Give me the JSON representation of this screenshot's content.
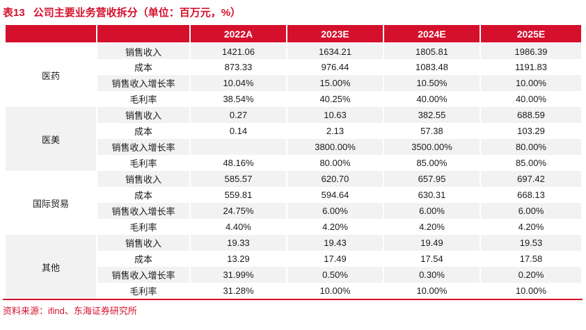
{
  "title": {
    "prefix": "表13",
    "text": "公司主要业务营收拆分（单位：百万元，%）"
  },
  "colors": {
    "accent_red": "#D4102C",
    "stripe_gray": "#F2F2F2",
    "text_dark": "#1A1A1A",
    "header_text": "#FFFFFF"
  },
  "table": {
    "year_headers": [
      "2022A",
      "2023E",
      "2024E",
      "2025E"
    ],
    "groups": [
      {
        "label": "医药",
        "rows": [
          {
            "metric": "销售收入",
            "values": [
              "1421.06",
              "1634.21",
              "1805.81",
              "1986.39"
            ]
          },
          {
            "metric": "成本",
            "values": [
              "873.33",
              "976.44",
              "1083.48",
              "1191.83"
            ]
          },
          {
            "metric": "销售收入增长率",
            "values": [
              "10.04%",
              "15.00%",
              "10.50%",
              "10.00%"
            ]
          },
          {
            "metric": "毛利率",
            "values": [
              "38.54%",
              "40.25%",
              "40.00%",
              "40.00%"
            ]
          }
        ]
      },
      {
        "label": "医美",
        "rows": [
          {
            "metric": "销售收入",
            "values": [
              "0.27",
              "10.63",
              "382.55",
              "688.59"
            ]
          },
          {
            "metric": "成本",
            "values": [
              "0.14",
              "2.13",
              "57.38",
              "103.29"
            ]
          },
          {
            "metric": "销售收入增长率",
            "values": [
              "",
              "3800.00%",
              "3500.00%",
              "80.00%"
            ]
          },
          {
            "metric": "毛利率",
            "values": [
              "48.16%",
              "80.00%",
              "85.00%",
              "85.00%"
            ]
          }
        ]
      },
      {
        "label": "国际贸易",
        "rows": [
          {
            "metric": "销售收入",
            "values": [
              "585.57",
              "620.70",
              "657.95",
              "697.42"
            ]
          },
          {
            "metric": "成本",
            "values": [
              "559.81",
              "594.64",
              "630.31",
              "668.13"
            ]
          },
          {
            "metric": "销售收入增长率",
            "values": [
              "24.75%",
              "6.00%",
              "6.00%",
              "6.00%"
            ]
          },
          {
            "metric": "毛利率",
            "values": [
              "4.40%",
              "4.20%",
              "4.20%",
              "4.20%"
            ]
          }
        ]
      },
      {
        "label": "其他",
        "rows": [
          {
            "metric": "销售收入",
            "values": [
              "19.33",
              "19.43",
              "19.49",
              "19.53"
            ]
          },
          {
            "metric": "成本",
            "values": [
              "13.29",
              "17.49",
              "17.54",
              "17.58"
            ]
          },
          {
            "metric": "销售收入增长率",
            "values": [
              "31.99%",
              "0.50%",
              "0.30%",
              "0.20%"
            ]
          },
          {
            "metric": "毛利率",
            "values": [
              "31.28%",
              "10.00%",
              "10.00%",
              "10.00%"
            ]
          }
        ]
      }
    ]
  },
  "footer": {
    "source": "资料来源：ifind、东海证券研究所"
  }
}
